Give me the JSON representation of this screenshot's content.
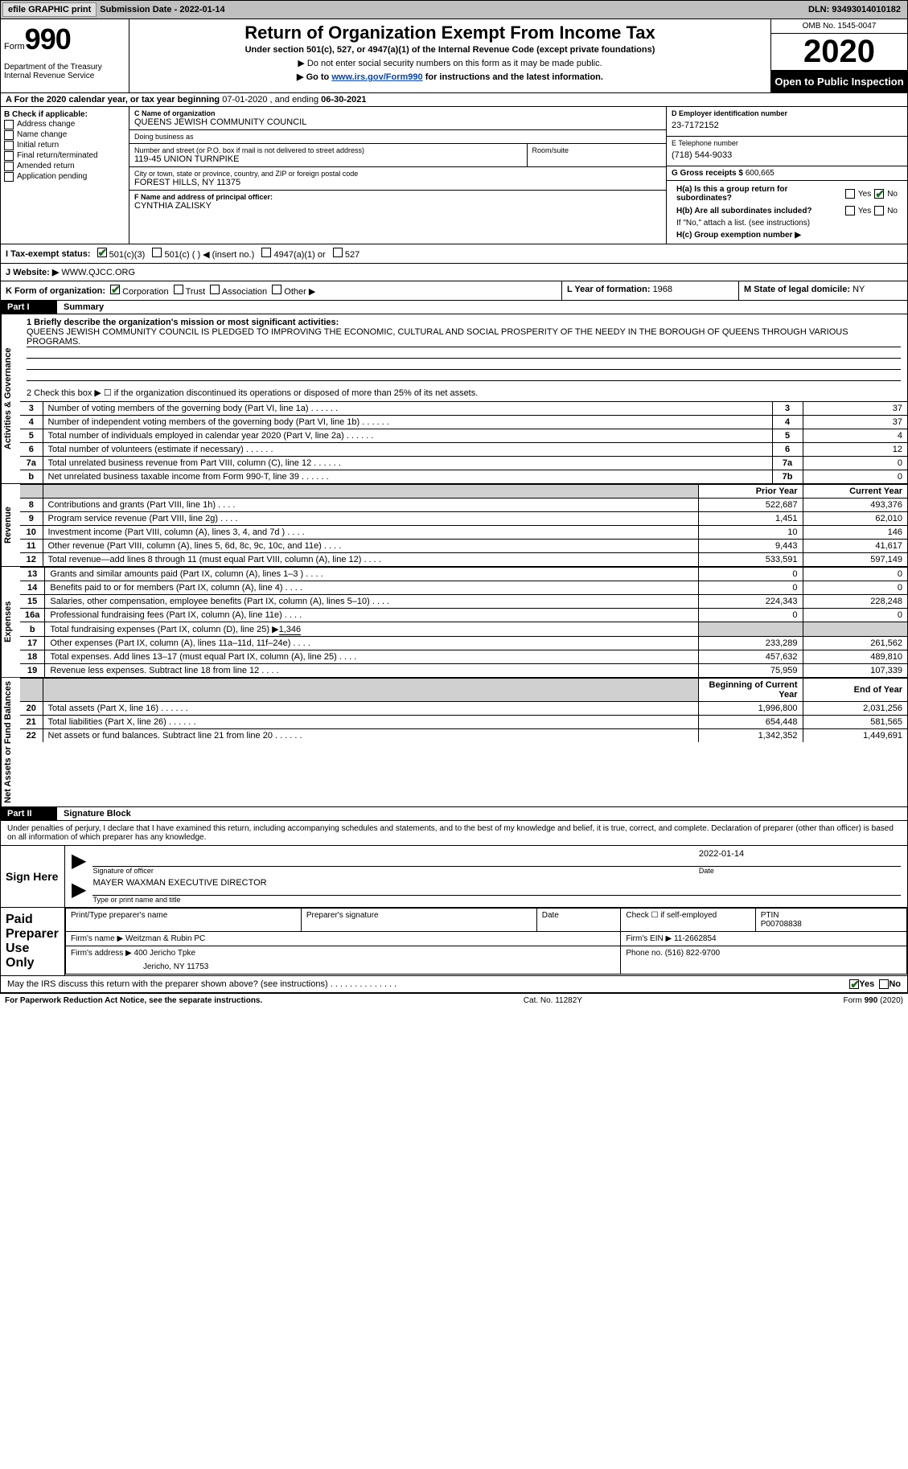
{
  "topbar": {
    "btn1": "efile GRAPHIC print",
    "sub_label": "Submission Date - ",
    "sub_date": "2022-01-14",
    "dln_label": "DLN: ",
    "dln": "93493014010182"
  },
  "header": {
    "form_word": "Form",
    "form_num": "990",
    "dept": "Department of the Treasury\nInternal Revenue Service",
    "title": "Return of Organization Exempt From Income Tax",
    "sub1": "Under section 501(c), 527, or 4947(a)(1) of the Internal Revenue Code (except private foundations)",
    "sub2": "▶ Do not enter social security numbers on this form as it may be made public.",
    "sub3_pre": "▶ Go to ",
    "sub3_link": "www.irs.gov/Form990",
    "sub3_post": " for instructions and the latest information.",
    "omb": "OMB No. 1545-0047",
    "year": "2020",
    "inspect": "Open to Public Inspection"
  },
  "period": {
    "a_label": "A For the 2020 calendar year, or tax year beginning ",
    "begin": "07-01-2020",
    "mid": " , and ending ",
    "end": "06-30-2021"
  },
  "boxB": {
    "title": "B Check if applicable:",
    "items": [
      "Address change",
      "Name change",
      "Initial return",
      "Final return/terminated",
      "Amended return",
      "Application pending"
    ],
    "checked": [
      false,
      false,
      false,
      false,
      false,
      false
    ]
  },
  "boxC": {
    "name_lbl": "C Name of organization",
    "name": "QUEENS JEWISH COMMUNITY COUNCIL",
    "dba_lbl": "Doing business as",
    "dba": "",
    "street_lbl": "Number and street (or P.O. box if mail is not delivered to street address)",
    "room_lbl": "Room/suite",
    "street": "119-45 UNION TURNPIKE",
    "city_lbl": "City or town, state or province, country, and ZIP or foreign postal code",
    "city": "FOREST HILLS, NY  11375",
    "officer_lbl": "F Name and address of principal officer:",
    "officer": "CYNTHIA ZALISKY"
  },
  "boxD": {
    "ein_lbl": "D Employer identification number",
    "ein": "23-7172152",
    "phone_lbl": "E Telephone number",
    "phone": "(718) 544-9033",
    "gross_lbl": "G Gross receipts $ ",
    "gross": "600,665"
  },
  "boxH": {
    "ha_lbl": "H(a)  Is this a group return for subordinates?",
    "ha_yes": false,
    "ha_no": true,
    "hb_lbl": "H(b)  Are all subordinates included?",
    "hb_yes": false,
    "hb_no": false,
    "hb_note": "If \"No,\" attach a list. (see instructions)",
    "hc_lbl": "H(c)  Group exemption number ▶",
    "hc_val": ""
  },
  "statusI": {
    "label": "I  Tax-exempt status:",
    "opts": [
      "501(c)(3)",
      "501(c) (  ) ◀ (insert no.)",
      "4947(a)(1) or",
      "527"
    ],
    "checked": [
      true,
      false,
      false,
      false
    ]
  },
  "rowJ": {
    "label": "J  Website: ▶",
    "val": "WWW.QJCC.ORG"
  },
  "rowK": {
    "label": "K Form of organization:",
    "opts": [
      "Corporation",
      "Trust",
      "Association",
      "Other ▶"
    ],
    "checked": [
      true,
      false,
      false,
      false
    ],
    "l_label": "L Year of formation: ",
    "l_val": "1968",
    "m_label": "M State of legal domicile: ",
    "m_val": "NY"
  },
  "part1": {
    "hdr_num": "Part I",
    "hdr_title": "Summary",
    "line1_lbl": "1  Briefly describe the organization's mission or most significant activities:",
    "line1_txt": "QUEENS JEWISH COMMUNITY COUNCIL IS PLEDGED TO IMPROVING THE ECONOMIC, CULTURAL AND SOCIAL PROSPERITY OF THE NEEDY IN THE BOROUGH OF QUEENS THROUGH VARIOUS PROGRAMS.",
    "line2_lbl": "2  Check this box ▶ ☐  if the organization discontinued its operations or disposed of more than 25% of its net assets.",
    "gov_rows": [
      {
        "n": "3",
        "desc": "Number of voting members of the governing body (Part VI, line 1a)",
        "ln": "3",
        "v": "37"
      },
      {
        "n": "4",
        "desc": "Number of independent voting members of the governing body (Part VI, line 1b)",
        "ln": "4",
        "v": "37"
      },
      {
        "n": "5",
        "desc": "Total number of individuals employed in calendar year 2020 (Part V, line 2a)",
        "ln": "5",
        "v": "4"
      },
      {
        "n": "6",
        "desc": "Total number of volunteers (estimate if necessary)",
        "ln": "6",
        "v": "12"
      },
      {
        "n": "7a",
        "desc": "Total unrelated business revenue from Part VIII, column (C), line 12",
        "ln": "7a",
        "v": "0"
      },
      {
        "n": "b",
        "desc": "Net unrelated business taxable income from Form 990-T, line 39",
        "ln": "7b",
        "v": "0"
      }
    ],
    "col_prior": "Prior Year",
    "col_curr": "Current Year",
    "rev_rows": [
      {
        "n": "8",
        "desc": "Contributions and grants (Part VIII, line 1h)",
        "p": "522,687",
        "c": "493,376"
      },
      {
        "n": "9",
        "desc": "Program service revenue (Part VIII, line 2g)",
        "p": "1,451",
        "c": "62,010"
      },
      {
        "n": "10",
        "desc": "Investment income (Part VIII, column (A), lines 3, 4, and 7d )",
        "p": "10",
        "c": "146"
      },
      {
        "n": "11",
        "desc": "Other revenue (Part VIII, column (A), lines 5, 6d, 8c, 9c, 10c, and 11e)",
        "p": "9,443",
        "c": "41,617"
      },
      {
        "n": "12",
        "desc": "Total revenue—add lines 8 through 11 (must equal Part VIII, column (A), line 12)",
        "p": "533,591",
        "c": "597,149"
      }
    ],
    "exp_rows": [
      {
        "n": "13",
        "desc": "Grants and similar amounts paid (Part IX, column (A), lines 1–3 )",
        "p": "0",
        "c": "0"
      },
      {
        "n": "14",
        "desc": "Benefits paid to or for members (Part IX, column (A), line 4)",
        "p": "0",
        "c": "0"
      },
      {
        "n": "15",
        "desc": "Salaries, other compensation, employee benefits (Part IX, column (A), lines 5–10)",
        "p": "224,343",
        "c": "228,248"
      },
      {
        "n": "16a",
        "desc": "Professional fundraising fees (Part IX, column (A), line 11e)",
        "p": "0",
        "c": "0"
      },
      {
        "n": "b",
        "desc_pre": "Total fundraising expenses (Part IX, column (D), line 25) ▶",
        "desc_val": "1,346",
        "p": "",
        "c": "",
        "shade": true
      },
      {
        "n": "17",
        "desc": "Other expenses (Part IX, column (A), lines 11a–11d, 11f–24e)",
        "p": "233,289",
        "c": "261,562"
      },
      {
        "n": "18",
        "desc": "Total expenses. Add lines 13–17 (must equal Part IX, column (A), line 25)",
        "p": "457,632",
        "c": "489,810"
      },
      {
        "n": "19",
        "desc": "Revenue less expenses. Subtract line 18 from line 12",
        "p": "75,959",
        "c": "107,339"
      }
    ],
    "col_begin": "Beginning of Current Year",
    "col_end": "End of Year",
    "net_rows": [
      {
        "n": "20",
        "desc": "Total assets (Part X, line 16)",
        "p": "1,996,800",
        "c": "2,031,256"
      },
      {
        "n": "21",
        "desc": "Total liabilities (Part X, line 26)",
        "p": "654,448",
        "c": "581,565"
      },
      {
        "n": "22",
        "desc": "Net assets or fund balances. Subtract line 21 from line 20",
        "p": "1,342,352",
        "c": "1,449,691"
      }
    ],
    "side_gov": "Activities & Governance",
    "side_rev": "Revenue",
    "side_exp": "Expenses",
    "side_net": "Net Assets or Fund Balances"
  },
  "part2": {
    "hdr_num": "Part II",
    "hdr_title": "Signature Block",
    "decl": "Under penalties of perjury, I declare that I have examined this return, including accompanying schedules and statements, and to the best of my knowledge and belief, it is true, correct, and complete. Declaration of preparer (other than officer) is based on all information of which preparer has any knowledge.",
    "sign_here": "Sign Here",
    "sig_officer_lbl": "Signature of officer",
    "sig_date_lbl": "Date",
    "sig_date": "2022-01-14",
    "sig_name": "MAYER WAXMAN  EXECUTIVE DIRECTOR",
    "sig_name_lbl": "Type or print name and title",
    "paid_lbl": "Paid Preparer Use Only",
    "prep_name_lbl": "Print/Type preparer's name",
    "prep_sig_lbl": "Preparer's signature",
    "prep_date_lbl": "Date",
    "prep_self_lbl": "Check ☐ if self-employed",
    "ptin_lbl": "PTIN",
    "ptin": "P00708838",
    "firm_name_lbl": "Firm's name ▶",
    "firm_name": "Weitzman & Rubin PC",
    "firm_ein_lbl": "Firm's EIN ▶",
    "firm_ein": "11-2662854",
    "firm_addr_lbl": "Firm's address ▶",
    "firm_addr": "400 Jericho Tpke",
    "firm_city": "Jericho, NY  11753",
    "firm_phone_lbl": "Phone no. ",
    "firm_phone": "(516) 822-9700",
    "discuss": "May the IRS discuss this return with the preparer shown above? (see instructions)",
    "discuss_yes": true,
    "discuss_no": false
  },
  "footer": {
    "left": "For Paperwork Reduction Act Notice, see the separate instructions.",
    "mid": "Cat. No. 11282Y",
    "right": "Form 990 (2020)"
  },
  "colors": {
    "link": "#0645ad",
    "check_green": "#1a6b1a",
    "shade": "#d0d0d0",
    "topbar": "#c0c0c0"
  }
}
